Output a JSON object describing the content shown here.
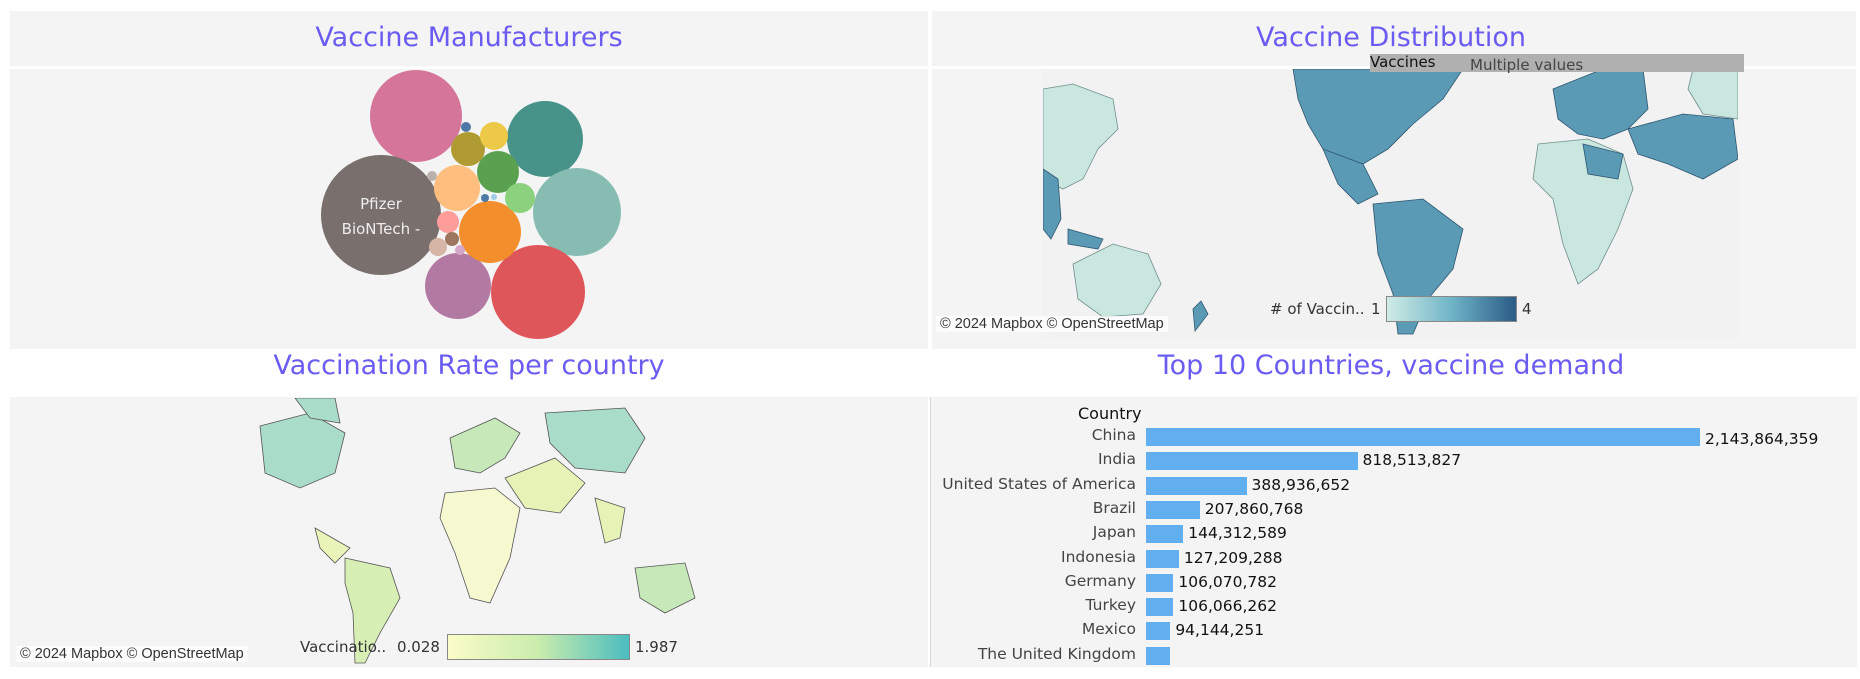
{
  "panels": {
    "manufacturers": {
      "title": "Vaccine Manufacturers",
      "bubble_label_line1": "Pfizer",
      "bubble_label_line2": "BioNTech -"
    },
    "distribution": {
      "title": "Vaccine Distribution",
      "filter_label": "Vaccines",
      "filter_value": "Multiple values",
      "legend_label": "# of Vaccin..",
      "legend_min": "1",
      "legend_max": "4",
      "credit": "© 2024 Mapbox © OpenStreetMap",
      "colors": {
        "low": "#d0ece6",
        "high": "#2b5b87"
      }
    },
    "rate": {
      "title": "Vaccination Rate per country",
      "legend_label": "Vaccinatio..",
      "legend_min": "0.028",
      "legend_max": "1.987",
      "credit": "© 2024 Mapbox © OpenStreetMap",
      "colors": {
        "low": "#fbfcc8",
        "high": "#4bbdc0"
      }
    },
    "top10": {
      "title": "Top 10 Countries, vaccine demand",
      "axis_header": "Country",
      "bar_color": "#62aff0"
    }
  },
  "chart_data": {
    "type": "bar",
    "orientation": "horizontal",
    "title": "Top 10 Countries, vaccine demand",
    "ylabel": "Country",
    "categories": [
      "China",
      "India",
      "United States of America",
      "Brazil",
      "Japan",
      "Indonesia",
      "Germany",
      "Turkey",
      "Mexico",
      "The United Kingdom"
    ],
    "values": [
      2143864359,
      818513827,
      388936652,
      207860768,
      144312589,
      127209288,
      106070782,
      106066262,
      94144251,
      93000000
    ],
    "value_labels": [
      "2,143,864,359",
      "818,513,827",
      "388,936,652",
      "207,860,768",
      "144,312,589",
      "127,209,288",
      "106,070,782",
      "106,066,262",
      "94,144,251",
      ""
    ]
  }
}
